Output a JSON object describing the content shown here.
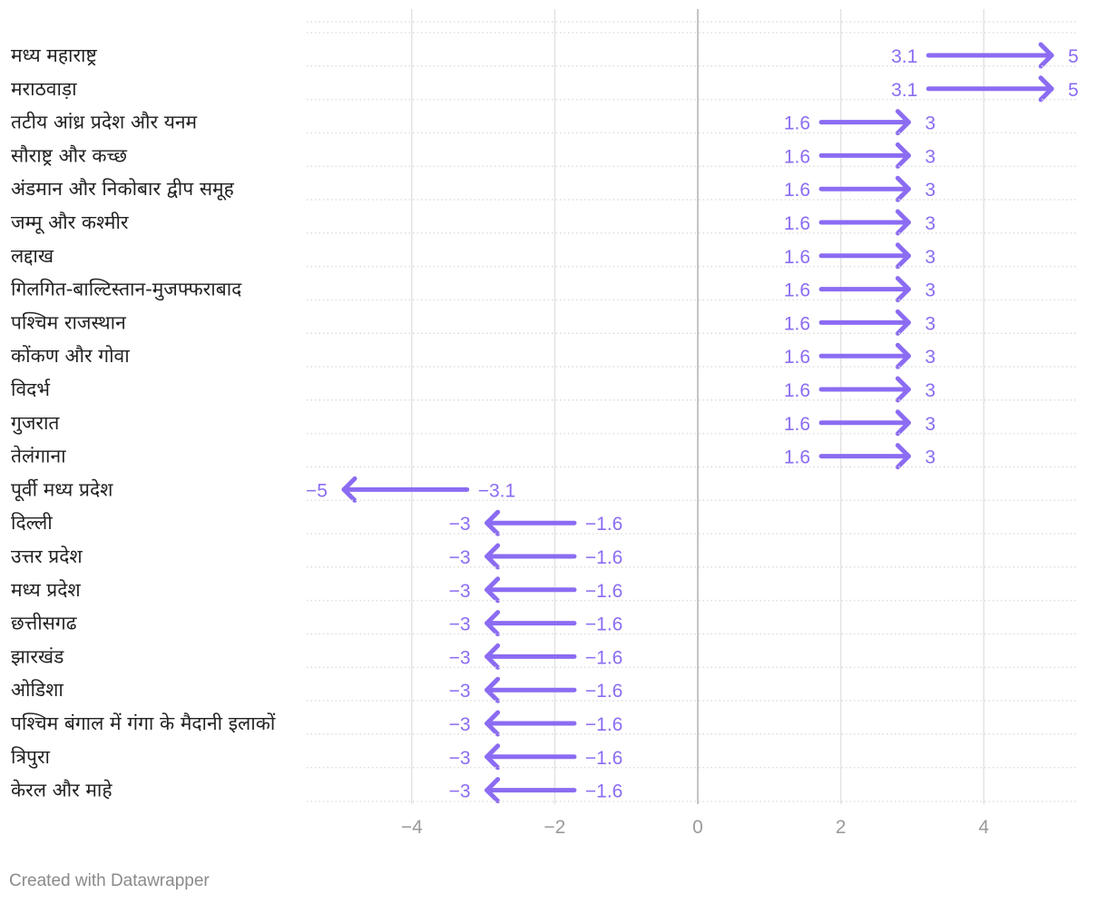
{
  "chart_data": {
    "type": "arrow",
    "title": "",
    "xlabel": "",
    "ylabel": "",
    "xlim": [
      -5.5,
      5.3
    ],
    "x_ticks": [
      -4,
      -2,
      0,
      2,
      4
    ],
    "x_tick_labels": [
      "−4",
      "−2",
      "0",
      "2",
      "4"
    ],
    "grid": true,
    "arrow_color": "#8b6cf2",
    "rows": [
      {
        "label": "मध्य महाराष्ट्र",
        "from": 3.1,
        "to": 5,
        "from_label": "3.1",
        "to_label": "5"
      },
      {
        "label": "मराठवाड़ा",
        "from": 3.1,
        "to": 5,
        "from_label": "3.1",
        "to_label": "5"
      },
      {
        "label": "तटीय आंध्र प्रदेश और यनम",
        "from": 1.6,
        "to": 3,
        "from_label": "1.6",
        "to_label": "3"
      },
      {
        "label": "सौराष्ट्र और कच्छ",
        "from": 1.6,
        "to": 3,
        "from_label": "1.6",
        "to_label": "3"
      },
      {
        "label": "अंडमान और निकोबार द्वीप समूह",
        "from": 1.6,
        "to": 3,
        "from_label": "1.6",
        "to_label": "3"
      },
      {
        "label": "जम्मू और कश्मीर",
        "from": 1.6,
        "to": 3,
        "from_label": "1.6",
        "to_label": "3"
      },
      {
        "label": "लद्दाख",
        "from": 1.6,
        "to": 3,
        "from_label": "1.6",
        "to_label": "3"
      },
      {
        "label": "गिलगित-बाल्टिस्तान-मुजफ्फराबाद",
        "from": 1.6,
        "to": 3,
        "from_label": "1.6",
        "to_label": "3"
      },
      {
        "label": "पश्चिम राजस्थान",
        "from": 1.6,
        "to": 3,
        "from_label": "1.6",
        "to_label": "3"
      },
      {
        "label": "कोंकण और गोवा",
        "from": 1.6,
        "to": 3,
        "from_label": "1.6",
        "to_label": "3"
      },
      {
        "label": "विदर्भ",
        "from": 1.6,
        "to": 3,
        "from_label": "1.6",
        "to_label": "3"
      },
      {
        "label": "गुजरात",
        "from": 1.6,
        "to": 3,
        "from_label": "1.6",
        "to_label": "3"
      },
      {
        "label": "तेलंगाना",
        "from": 1.6,
        "to": 3,
        "from_label": "1.6",
        "to_label": "3"
      },
      {
        "label": "पूर्वी मध्य प्रदेश",
        "from": -3.1,
        "to": -5,
        "from_label": "−3.1",
        "to_label": "−5"
      },
      {
        "label": "दिल्ली",
        "from": -1.6,
        "to": -3,
        "from_label": "−1.6",
        "to_label": "−3"
      },
      {
        "label": "उत्तर प्रदेश",
        "from": -1.6,
        "to": -3,
        "from_label": "−1.6",
        "to_label": "−3"
      },
      {
        "label": "मध्य प्रदेश",
        "from": -1.6,
        "to": -3,
        "from_label": "−1.6",
        "to_label": "−3"
      },
      {
        "label": "छत्तीसगढ",
        "from": -1.6,
        "to": -3,
        "from_label": "−1.6",
        "to_label": "−3"
      },
      {
        "label": "झारखंड",
        "from": -1.6,
        "to": -3,
        "from_label": "−1.6",
        "to_label": "−3"
      },
      {
        "label": "ओडिशा",
        "from": -1.6,
        "to": -3,
        "from_label": "−1.6",
        "to_label": "−3"
      },
      {
        "label": "पश्चिम बंगाल में गंगा के मैदानी इलाकों",
        "from": -1.6,
        "to": -3,
        "from_label": "−1.6",
        "to_label": "−3"
      },
      {
        "label": "त्रिपुरा",
        "from": -1.6,
        "to": -3,
        "from_label": "−1.6",
        "to_label": "−3"
      },
      {
        "label": "केरल और माहे",
        "from": -1.6,
        "to": -3,
        "from_label": "−1.6",
        "to_label": "−3"
      }
    ]
  },
  "footer": {
    "credit": "Created with Datawrapper"
  }
}
